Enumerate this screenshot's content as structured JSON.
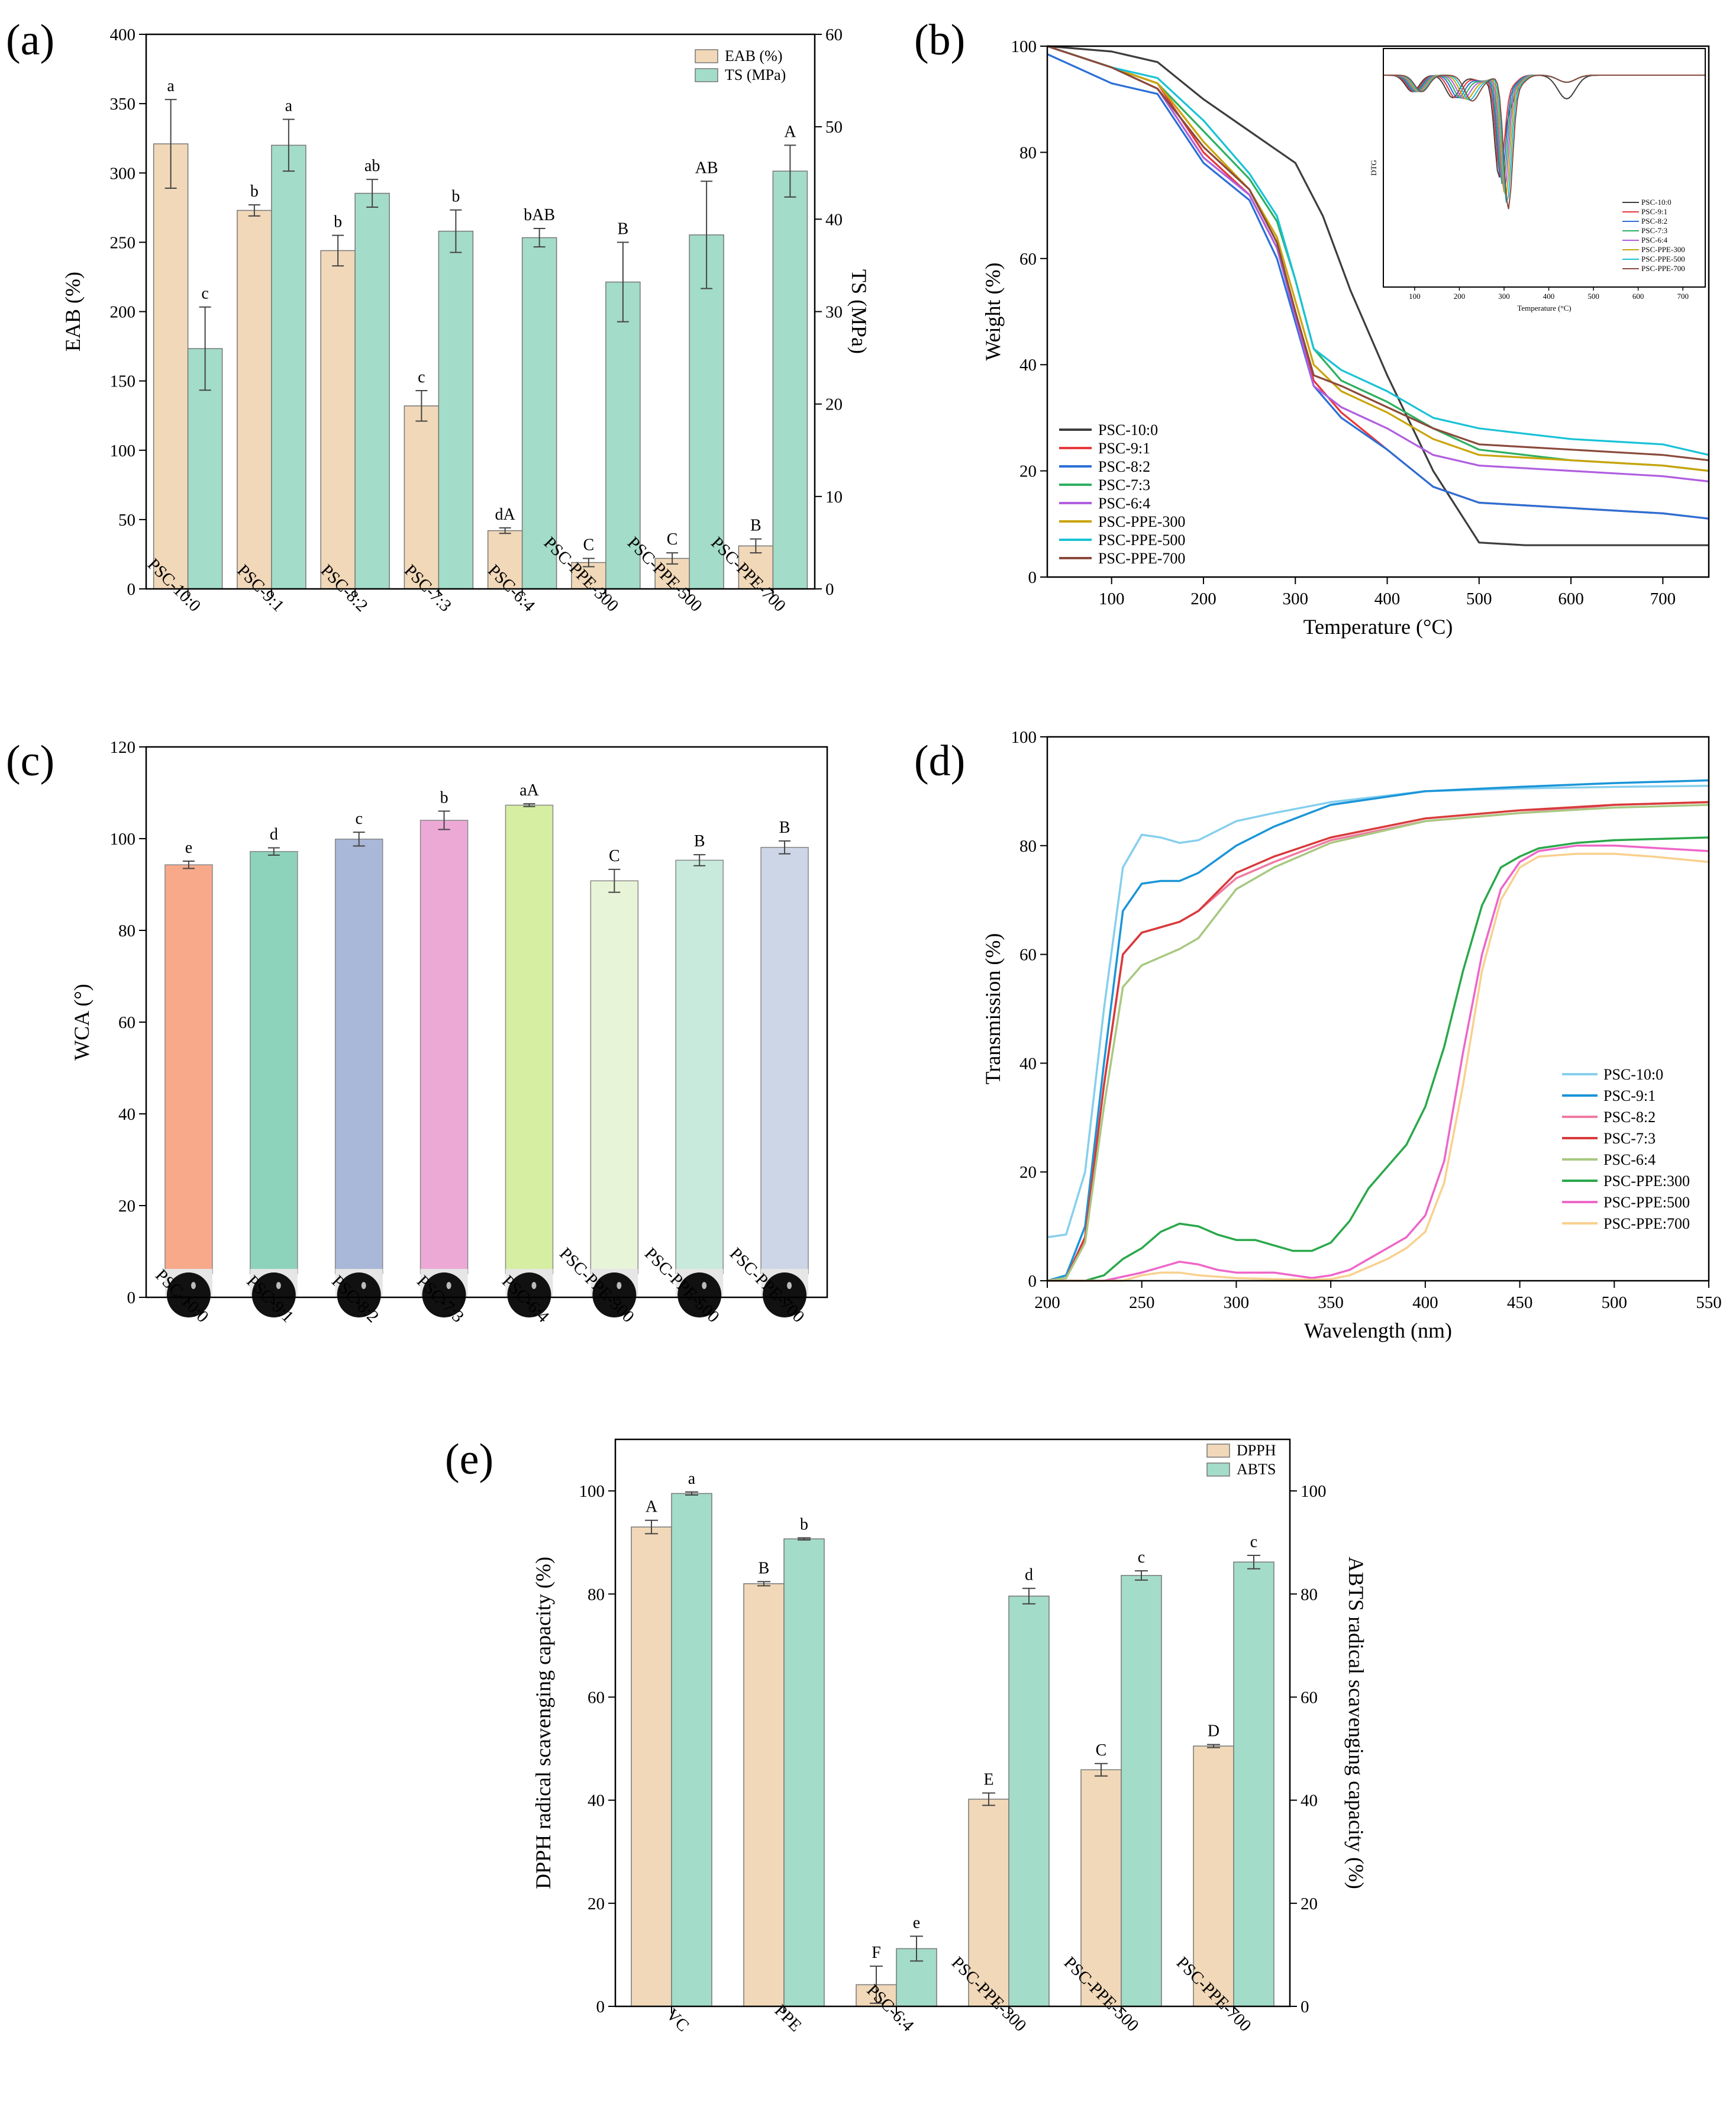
{
  "chart_data": [
    {
      "panel": "(a)",
      "type": "bar",
      "categories": [
        "PSC-10:0",
        "PSC-9:1",
        "PSC-8:2",
        "PSC-7:3",
        "PSC-6:4",
        "PSC-PPE-300",
        "PSC-PPE-500",
        "PSC-PPE-700"
      ],
      "ylabel": "EAB (%)",
      "y2label": "TS (MPa)",
      "ylim": [
        0,
        400
      ],
      "y2lim": [
        0,
        60
      ],
      "yticks": [
        0,
        50,
        100,
        150,
        200,
        250,
        300,
        350,
        400
      ],
      "y2ticks": [
        0,
        10,
        20,
        30,
        40,
        50,
        60
      ],
      "legend": "top-right",
      "series": [
        {
          "name": "EAB (%)",
          "axis": "left",
          "color": "#f1d8b8",
          "values": [
            321,
            273,
            244,
            132,
            42,
            19,
            22,
            31
          ],
          "errors": [
            32,
            4,
            11,
            11,
            2,
            3,
            4,
            5
          ],
          "labels": [
            "a",
            "b",
            "b",
            "c",
            "dA",
            "C",
            "C",
            "B"
          ]
        },
        {
          "name": "TS (MPa)",
          "axis": "right",
          "color": "#a3dcc8",
          "values": [
            26,
            48,
            42.8,
            38.7,
            38,
            33.2,
            38.3,
            45.2
          ],
          "errors": [
            4.5,
            2.8,
            1.5,
            2.3,
            1.0,
            4.3,
            5.8,
            2.8
          ],
          "labels": [
            "c",
            "a",
            "ab",
            "b",
            "bAB",
            "B",
            "AB",
            "A"
          ]
        }
      ]
    },
    {
      "panel": "(b)",
      "type": "line",
      "xlabel": "Temperature (°C)",
      "ylabel": "Weight (%)",
      "xlim": [
        30,
        750
      ],
      "ylim": [
        0,
        100
      ],
      "xticks": [
        100,
        200,
        300,
        400,
        500,
        600,
        700
      ],
      "yticks": [
        0,
        20,
        40,
        60,
        80,
        100
      ],
      "legend": "bottom-left",
      "series": [
        {
          "name": "PSC-10:0",
          "color": "#3d3d3d",
          "x": [
            30,
            100,
            150,
            200,
            250,
            300,
            330,
            360,
            400,
            450,
            500,
            550,
            600,
            700,
            750
          ],
          "y": [
            100,
            99,
            97,
            90,
            84,
            78,
            68,
            54,
            38,
            20,
            6.5,
            6,
            6,
            6,
            6
          ]
        },
        {
          "name": "PSC-9:1",
          "color": "#e8383a",
          "x": [
            30,
            100,
            150,
            200,
            250,
            280,
            300,
            320,
            350,
            400,
            450,
            500,
            600,
            700,
            750
          ],
          "y": [
            100,
            96,
            93,
            80,
            72,
            62,
            50,
            37,
            31,
            24,
            17,
            14,
            13,
            12,
            11
          ]
        },
        {
          "name": "PSC-8:2",
          "color": "#2a6fd6",
          "x": [
            30,
            100,
            150,
            200,
            250,
            280,
            300,
            320,
            350,
            400,
            450,
            500,
            600,
            700,
            750
          ],
          "y": [
            98.5,
            93,
            91,
            78,
            71,
            60,
            48,
            36,
            30,
            24,
            17,
            14,
            13,
            12,
            11
          ]
        },
        {
          "name": "PSC-7:3",
          "color": "#2db060",
          "x": [
            30,
            100,
            150,
            200,
            250,
            280,
            300,
            320,
            350,
            400,
            450,
            500,
            600,
            700,
            750
          ],
          "y": [
            100,
            96,
            93,
            84,
            75,
            67,
            56,
            43,
            37,
            33,
            28,
            24,
            22,
            21,
            20
          ]
        },
        {
          "name": "PSC-6:4",
          "color": "#b05ee0",
          "x": [
            30,
            100,
            150,
            200,
            250,
            280,
            300,
            320,
            350,
            400,
            450,
            500,
            600,
            700,
            750
          ],
          "y": [
            100,
            96,
            92,
            79,
            72,
            62,
            49,
            36,
            32,
            28,
            23,
            21,
            20,
            19,
            18
          ]
        },
        {
          "name": "PSC-PPE-300",
          "color": "#c9a40a",
          "x": [
            30,
            100,
            150,
            200,
            250,
            280,
            300,
            320,
            350,
            400,
            450,
            500,
            600,
            700,
            750
          ],
          "y": [
            100,
            96,
            93,
            82,
            73,
            64,
            52,
            40,
            35,
            31,
            26,
            23,
            22,
            21,
            20
          ]
        },
        {
          "name": "PSC-PPE-500",
          "color": "#19c2d6",
          "x": [
            30,
            100,
            150,
            200,
            250,
            280,
            300,
            320,
            350,
            400,
            450,
            500,
            600,
            700,
            750
          ],
          "y": [
            100,
            96,
            94,
            86,
            76,
            68,
            56,
            43,
            39,
            35,
            30,
            28,
            26,
            25,
            23
          ]
        },
        {
          "name": "PSC-PPE-700",
          "color": "#8a4a3c",
          "x": [
            30,
            100,
            150,
            200,
            250,
            280,
            300,
            320,
            350,
            400,
            450,
            500,
            600,
            700,
            750
          ],
          "y": [
            100,
            96,
            92,
            81,
            73,
            63,
            50,
            38,
            36,
            32,
            28,
            25,
            24,
            23,
            22
          ]
        }
      ],
      "inset": {
        "ylabel": "DTG",
        "xlabel": "Temperature (°C)",
        "xticks": [
          100,
          200,
          300,
          400,
          500,
          600,
          700
        ],
        "legend": [
          "PSC-10:0",
          "PSC-9:1",
          "PSC-8:2",
          "PSC-7:3",
          "PSC-6:4",
          "PSC-PPE-300",
          "PSC-PPE-500",
          "PSC-PPE-700"
        ]
      }
    },
    {
      "panel": "(c)",
      "type": "bar",
      "categories": [
        "PSC-10:0",
        "PSC-9:1",
        "PSC-8:2",
        "PSC-7:3",
        "PSC-6:4",
        "PSC-PPE-300",
        "PSC-PPE-500",
        "PSC-PPE-700"
      ],
      "ylabel": "WCA (°)",
      "ylim": [
        0,
        120
      ],
      "yticks": [
        0,
        20,
        40,
        60,
        80,
        100,
        120
      ],
      "colors": [
        "#f8a98a",
        "#8dd3bb",
        "#a9b7d8",
        "#eca9d6",
        "#d6eea2",
        "#e8f4d8",
        "#c8eadc",
        "#cdd6e6"
      ],
      "values": [
        94.3,
        97.2,
        99.9,
        104,
        107.3,
        90.8,
        95.3,
        98.1
      ],
      "errors": [
        0.8,
        0.8,
        1.5,
        2.0,
        0.3,
        2.5,
        1.2,
        1.4
      ],
      "labels": [
        "e",
        "d",
        "c",
        "b",
        "aA",
        "C",
        "B",
        "B"
      ]
    },
    {
      "panel": "(d)",
      "type": "line",
      "xlabel": "Wavelength (nm)",
      "ylabel": "Transmission (%)",
      "xlim": [
        200,
        550
      ],
      "ylim": [
        0,
        100
      ],
      "xticks": [
        200,
        250,
        300,
        350,
        400,
        450,
        500,
        550
      ],
      "yticks": [
        0,
        20,
        40,
        60,
        80,
        100
      ],
      "legend": "bottom-right",
      "series": [
        {
          "name": "PSC-10:0",
          "color": "#86cfee",
          "x": [
            200,
            210,
            220,
            230,
            240,
            250,
            260,
            270,
            280,
            300,
            320,
            350,
            400,
            450,
            500,
            550
          ],
          "y": [
            8,
            8.5,
            20,
            50,
            76,
            82,
            81.5,
            80.5,
            81,
            84.5,
            86,
            88,
            90,
            90.5,
            90.8,
            91
          ]
        },
        {
          "name": "PSC-9:1",
          "color": "#1a95d8",
          "x": [
            200,
            210,
            220,
            230,
            240,
            250,
            260,
            270,
            280,
            300,
            320,
            350,
            400,
            450,
            500,
            550
          ],
          "y": [
            0,
            1,
            10,
            40,
            68,
            73,
            73.5,
            73.5,
            75,
            80,
            83.5,
            87.5,
            90,
            90.8,
            91.5,
            92
          ]
        },
        {
          "name": "PSC-8:2",
          "color": "#f07aa3",
          "x": [
            200,
            210,
            220,
            230,
            240,
            250,
            260,
            270,
            280,
            300,
            320,
            350,
            400,
            450,
            500,
            550
          ],
          "y": [
            0,
            0.5,
            8,
            36,
            60,
            64,
            65,
            66,
            68,
            74,
            77,
            81,
            84.5,
            86,
            87.5,
            88
          ]
        },
        {
          "name": "PSC-7:3",
          "color": "#d83a3a",
          "x": [
            200,
            210,
            220,
            230,
            240,
            250,
            260,
            270,
            280,
            300,
            320,
            350,
            400,
            450,
            500,
            550
          ],
          "y": [
            0,
            0.5,
            8,
            36,
            60,
            64,
            65,
            66,
            68,
            75,
            78,
            81.5,
            85,
            86.5,
            87.5,
            88
          ]
        },
        {
          "name": "PSC-6:4",
          "color": "#a8c880",
          "x": [
            200,
            210,
            220,
            230,
            240,
            250,
            260,
            270,
            280,
            300,
            320,
            350,
            400,
            450,
            500,
            550
          ],
          "y": [
            0,
            0.5,
            7,
            32,
            54,
            58,
            59.5,
            61,
            63,
            72,
            76,
            80.5,
            84.5,
            86,
            87,
            87.5
          ]
        },
        {
          "name": "PSC-PPE:300",
          "color": "#2aa84a",
          "x": [
            200,
            210,
            220,
            230,
            240,
            250,
            260,
            270,
            280,
            290,
            300,
            310,
            320,
            330,
            340,
            350,
            360,
            370,
            380,
            390,
            400,
            410,
            420,
            430,
            440,
            450,
            460,
            480,
            500,
            550
          ],
          "y": [
            0,
            0,
            0,
            1,
            4,
            6,
            9,
            10.5,
            10,
            8.5,
            7.5,
            7.5,
            6.5,
            5.5,
            5.5,
            7,
            11,
            17,
            21,
            25,
            32,
            43,
            57,
            69,
            76,
            78,
            79.5,
            80.5,
            81,
            81.5
          ]
        },
        {
          "name": "PSC-PPE:500",
          "color": "#ee66c8",
          "x": [
            200,
            230,
            250,
            260,
            270,
            280,
            290,
            300,
            320,
            340,
            350,
            360,
            370,
            380,
            390,
            400,
            410,
            420,
            430,
            440,
            450,
            460,
            480,
            500,
            550
          ],
          "y": [
            0,
            0,
            1.5,
            2.5,
            3.5,
            3,
            2,
            1.5,
            1.5,
            0.5,
            1,
            2,
            4,
            6,
            8,
            12,
            22,
            42,
            60,
            72,
            77,
            79,
            80,
            80,
            79
          ]
        },
        {
          "name": "PSC-PPE:700",
          "color": "#f8d08e",
          "x": [
            200,
            240,
            250,
            260,
            270,
            280,
            300,
            320,
            340,
            350,
            360,
            370,
            380,
            390,
            400,
            410,
            420,
            430,
            440,
            450,
            460,
            480,
            500,
            520,
            550
          ],
          "y": [
            0,
            0,
            1,
            1.5,
            1.5,
            1,
            0.5,
            0.3,
            0.2,
            0.3,
            1,
            2.5,
            4,
            6,
            9,
            18,
            36,
            57,
            70,
            76,
            78,
            78.5,
            78.5,
            78,
            77
          ]
        }
      ]
    },
    {
      "panel": "(e)",
      "type": "bar",
      "categories": [
        "VC",
        "PPE",
        "PSC-6:4",
        "PSC-PPE-300",
        "PSC-PPE-500",
        "PSC-PPE-700"
      ],
      "ylabel": "DPPH radical scavenging capacity (%)",
      "y2label": "ABTS radical scavenging capacity (%)",
      "ylim": [
        0,
        110
      ],
      "y2lim": [
        0,
        110
      ],
      "yticks": [
        0,
        20,
        40,
        60,
        80,
        100
      ],
      "y2ticks": [
        0,
        20,
        40,
        60,
        80,
        100
      ],
      "legend": "top-right",
      "series": [
        {
          "name": "DPPH",
          "color": "#f1d8b8",
          "values": [
            93,
            82,
            4.2,
            40.2,
            45.9,
            50.5
          ],
          "errors": [
            1.3,
            0.4,
            3.6,
            1.2,
            1.2,
            0.3
          ],
          "labels": [
            "A",
            "B",
            "F",
            "E",
            "C",
            "D"
          ]
        },
        {
          "name": "ABTS",
          "color": "#a3dcc8",
          "values": [
            99.5,
            90.7,
            11.2,
            79.6,
            83.6,
            86.2
          ],
          "errors": [
            0.3,
            0.2,
            2.4,
            1.5,
            0.9,
            1.3
          ],
          "labels": [
            "a",
            "b",
            "e",
            "d",
            "c",
            "c"
          ]
        }
      ]
    }
  ]
}
